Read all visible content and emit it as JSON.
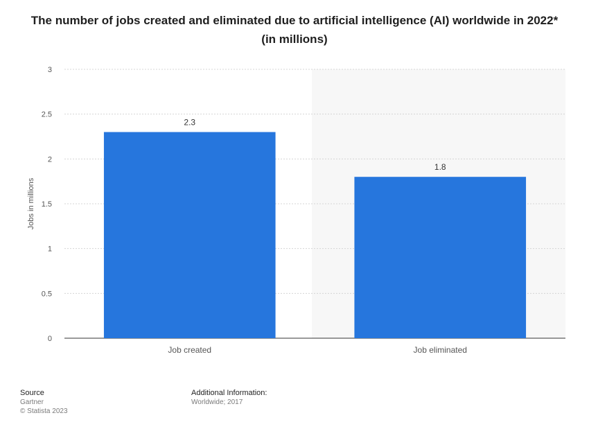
{
  "chart_data": {
    "type": "bar",
    "title": "The number of jobs created and eliminated due to artificial intelligence (AI) worldwide in 2022* (in millions)",
    "categories": [
      "Job created",
      "Job eliminated"
    ],
    "values": [
      2.3,
      1.8
    ],
    "data_labels": [
      "2.3",
      "1.8"
    ],
    "ylabel": "Jobs in millions",
    "xlabel": "",
    "ylim": [
      0,
      3
    ],
    "yticks": [
      0,
      0.5,
      1,
      1.5,
      2,
      2.5,
      3
    ],
    "ytick_labels": [
      "0",
      "0.5",
      "1",
      "1.5",
      "2",
      "2.5",
      "3"
    ],
    "grid": true,
    "bar_color": "#2676dd"
  },
  "footer": {
    "source_label": "Source",
    "source_value": "Gartner",
    "copyright": "© Statista 2023",
    "info_label": "Additional Information:",
    "info_value": "Worldwide; 2017"
  }
}
